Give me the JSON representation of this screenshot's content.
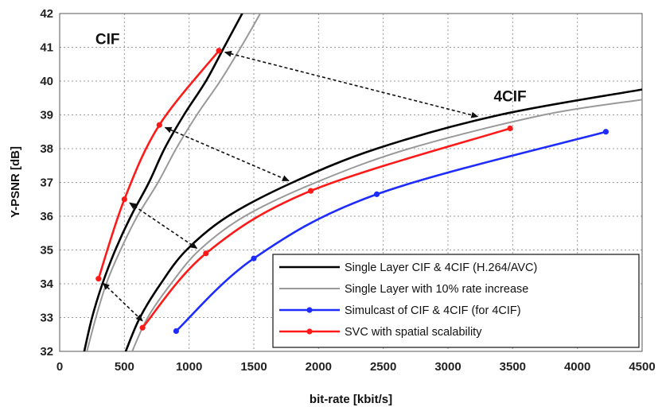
{
  "chart_data": {
    "type": "line",
    "title": "",
    "xlabel": "bit-rate [kbit/s]",
    "ylabel": "Y-PSNR [dB]",
    "xlim": [
      0,
      4500
    ],
    "ylim": [
      32,
      42
    ],
    "xticks": [
      0,
      500,
      1000,
      1500,
      2000,
      2500,
      3000,
      3500,
      4000,
      4500
    ],
    "yticks": [
      32,
      33,
      34,
      35,
      36,
      37,
      38,
      39,
      40,
      41,
      42
    ],
    "grid": true,
    "legend_position": "bottom-right",
    "annotations": [
      {
        "text": "CIF",
        "x": 370,
        "y": 41.1
      },
      {
        "text": "4CIF",
        "x": 3480,
        "y": 39.4
      }
    ],
    "series": [
      {
        "name": "Single Layer CIF & 4CIF (H.264/AVC)",
        "color": "#000000",
        "markers": false,
        "segments": [
          [
            [
              190,
              32
            ],
            [
              250,
              33
            ],
            [
              330,
              34
            ],
            [
              430,
              35
            ],
            [
              550,
              36
            ],
            [
              690,
              37
            ],
            [
              810,
              38
            ],
            [
              960,
              39
            ],
            [
              1130,
              40
            ],
            [
              1270,
              41
            ],
            [
              1410,
              42
            ]
          ],
          [
            [
              510,
              32
            ],
            [
              620,
              33
            ],
            [
              780,
              34
            ],
            [
              980,
              35
            ],
            [
              1300,
              36
            ],
            [
              1800,
              37
            ],
            [
              2450,
              38
            ],
            [
              3400,
              39
            ],
            [
              4500,
              39.75
            ]
          ]
        ]
      },
      {
        "name": "Single Layer with 10% rate increase",
        "color": "#999999",
        "markers": false,
        "segments": [
          [
            [
              210,
              32
            ],
            [
              280,
              33
            ],
            [
              360,
              34
            ],
            [
              470,
              35
            ],
            [
              600,
              36
            ],
            [
              760,
              37
            ],
            [
              900,
              38
            ],
            [
              1060,
              39
            ],
            [
              1240,
              40
            ],
            [
              1400,
              41
            ],
            [
              1550,
              42
            ]
          ],
          [
            [
              560,
              32
            ],
            [
              680,
              33
            ],
            [
              860,
              34
            ],
            [
              1080,
              35
            ],
            [
              1430,
              36
            ],
            [
              1980,
              37
            ],
            [
              2700,
              38
            ],
            [
              3740,
              39
            ],
            [
              4500,
              39.45
            ]
          ]
        ]
      },
      {
        "name": "Simulcast of CIF & 4CIF (for 4CIF)",
        "color": "#1f2cff",
        "markers": true,
        "segments": [
          [
            [
              900,
              32.6
            ],
            [
              1500,
              34.75
            ],
            [
              2450,
              36.65
            ],
            [
              4220,
              38.5
            ]
          ]
        ]
      },
      {
        "name": "SVC with spatial scalability",
        "color": "#ff1a1a",
        "markers": true,
        "segments": [
          [
            [
              300,
              34.15
            ],
            [
              500,
              36.5
            ],
            [
              770,
              38.7
            ],
            [
              1230,
              40.9
            ]
          ],
          [
            [
              640,
              32.7
            ],
            [
              1130,
              34.9
            ],
            [
              1940,
              36.75
            ],
            [
              3480,
              38.6
            ]
          ]
        ]
      }
    ],
    "arrows": [
      {
        "from": [
          1230,
          40.9
        ],
        "to": [
          3230,
          38.95
        ]
      },
      {
        "from": [
          770,
          38.7
        ],
        "to": [
          1770,
          37.05
        ]
      },
      {
        "from": [
          500,
          36.5
        ],
        "to": [
          1060,
          35.05
        ]
      },
      {
        "from": [
          300,
          34.15
        ],
        "to": [
          640,
          32.9
        ]
      }
    ]
  }
}
